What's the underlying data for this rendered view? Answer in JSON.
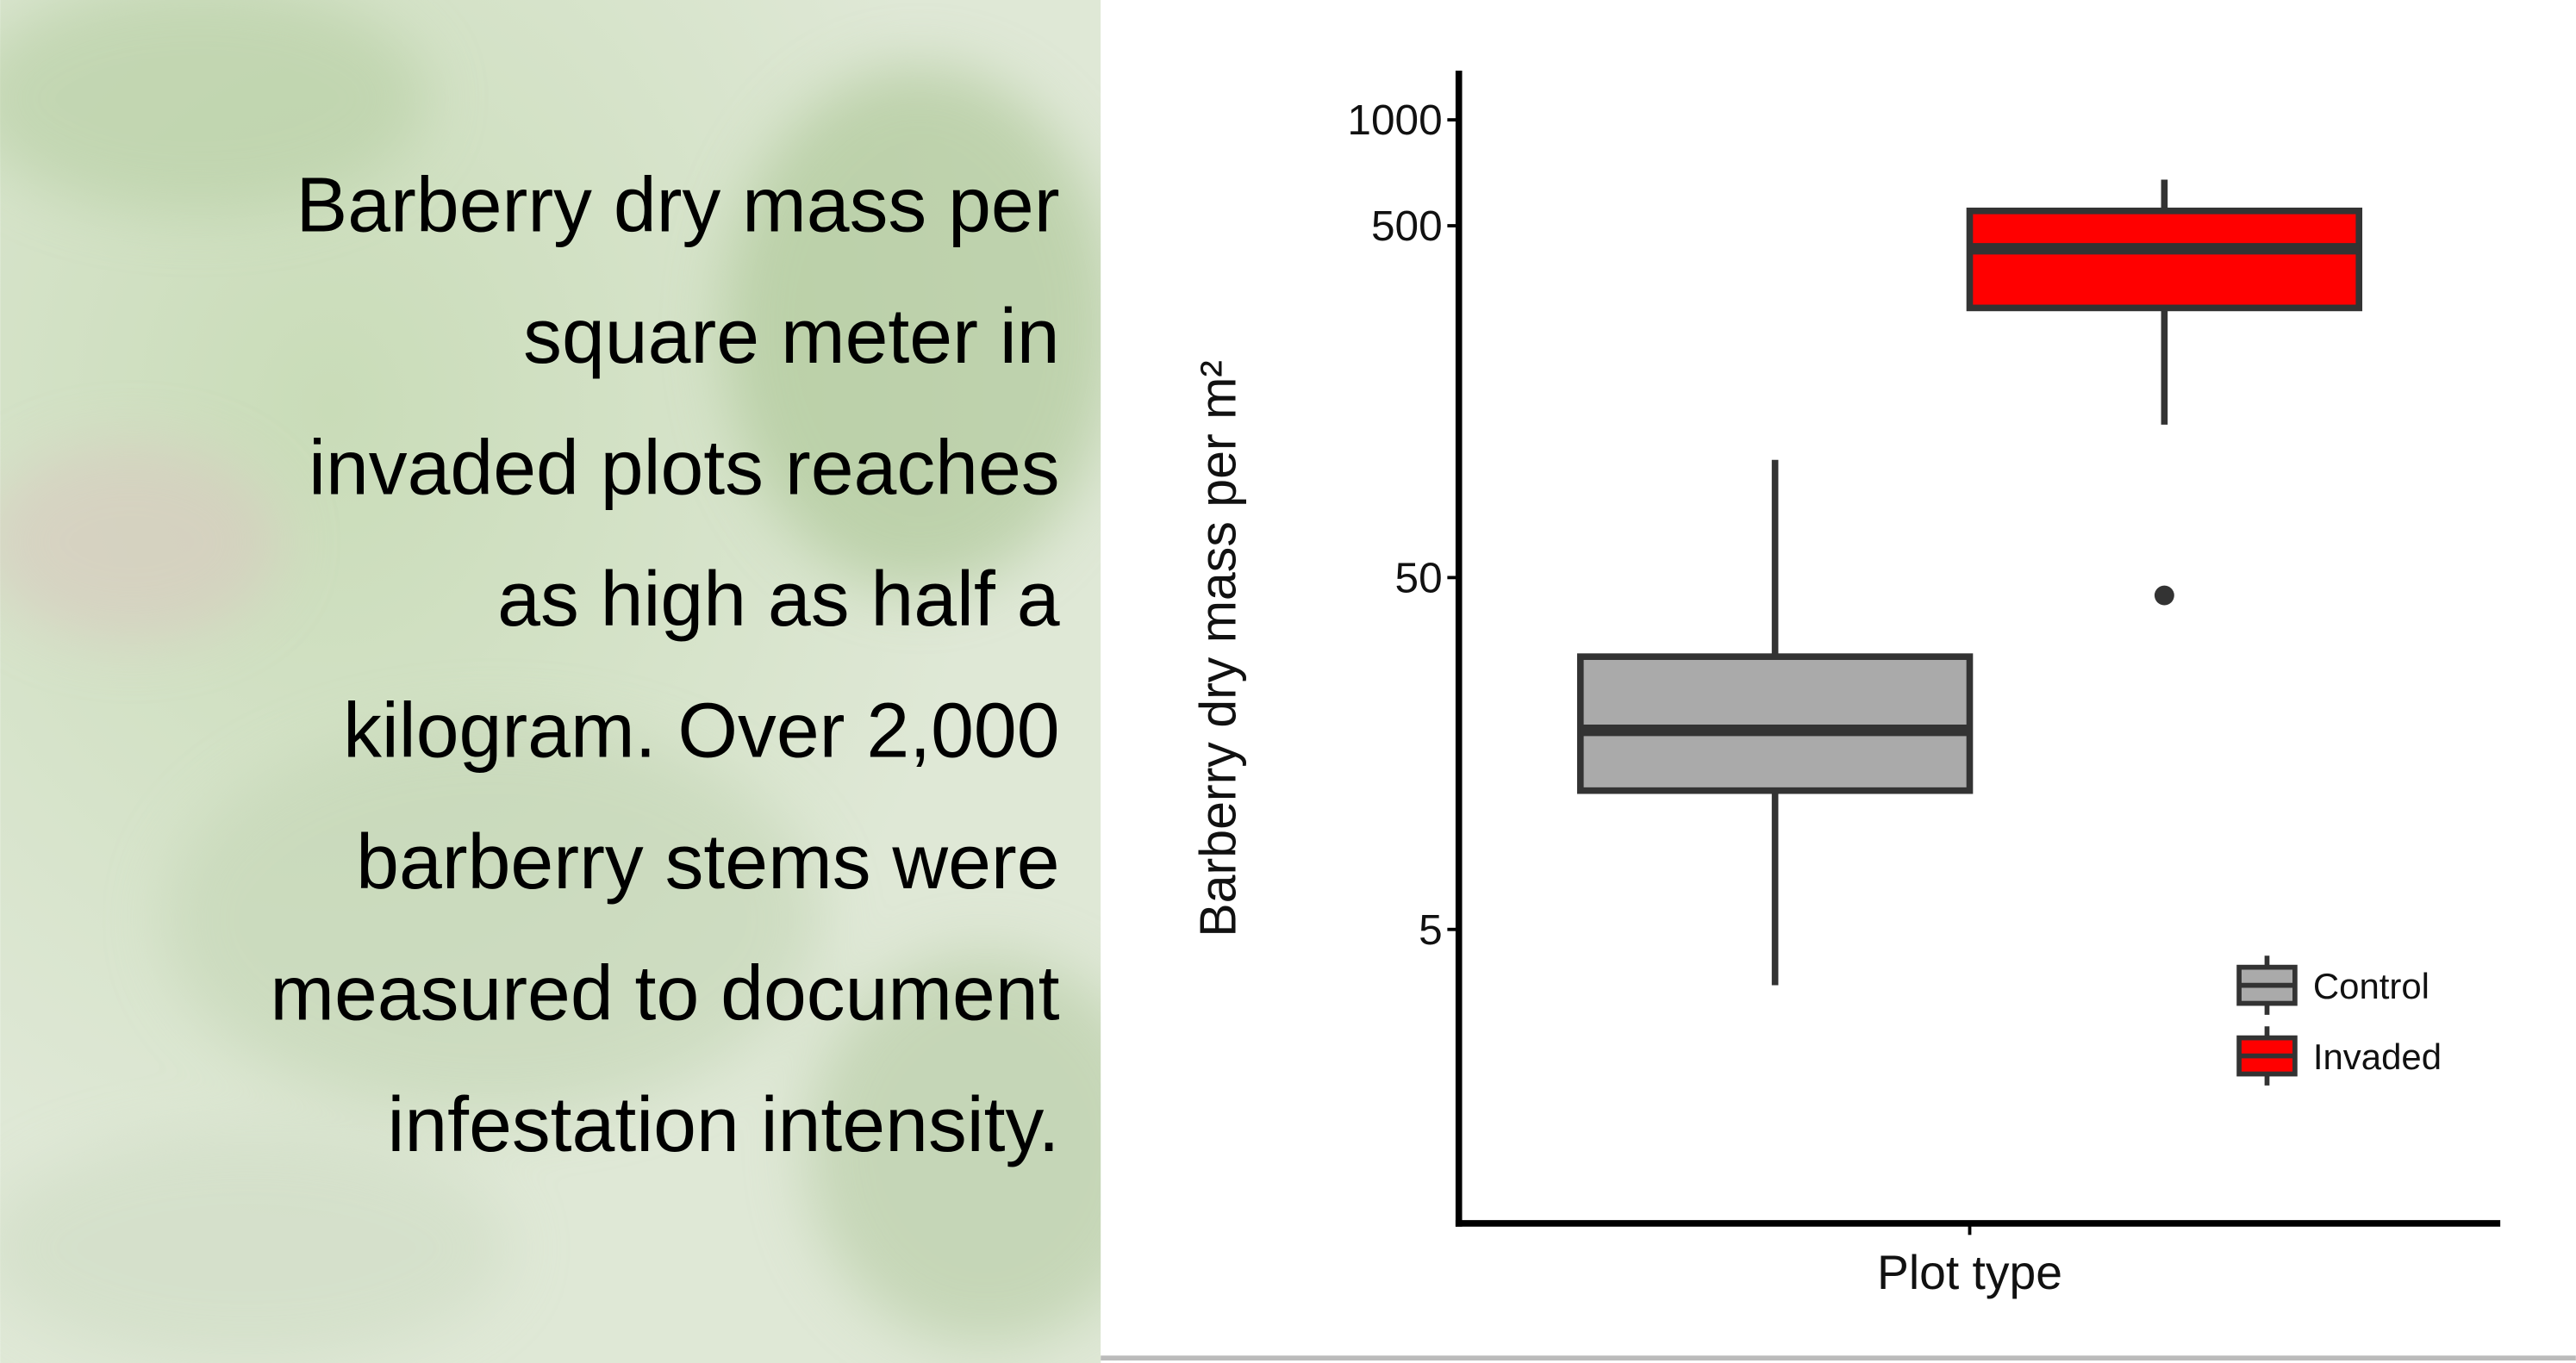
{
  "slide": {
    "text": [
      "Barberry dry mass per",
      "square meter in",
      "invaded plots reaches",
      "as high as half a",
      "kilogram. Over 2,000",
      "barberry stems were",
      "measured to document",
      "infestation intensity."
    ]
  },
  "chart_data": {
    "type": "box",
    "xlabel": "Plot type",
    "ylabel": "Barberry dry mass per m²",
    "log_scale": true,
    "ylim": [
      0.73,
      1380
    ],
    "yticks": [
      5,
      50,
      500,
      1000
    ],
    "legend_position": "bottom-right",
    "series": [
      {
        "name": "Control",
        "color": "#aaaaaa",
        "whislo": 3.47,
        "q1": 12.4,
        "med": 18.4,
        "q3": 29.8,
        "whishi": 108
      },
      {
        "name": "Invaded",
        "color": "#ff0000",
        "whislo": 136,
        "q1": 292,
        "med": 430,
        "q3": 551,
        "whishi": 676,
        "fliers": [
          44.5
        ]
      }
    ]
  }
}
